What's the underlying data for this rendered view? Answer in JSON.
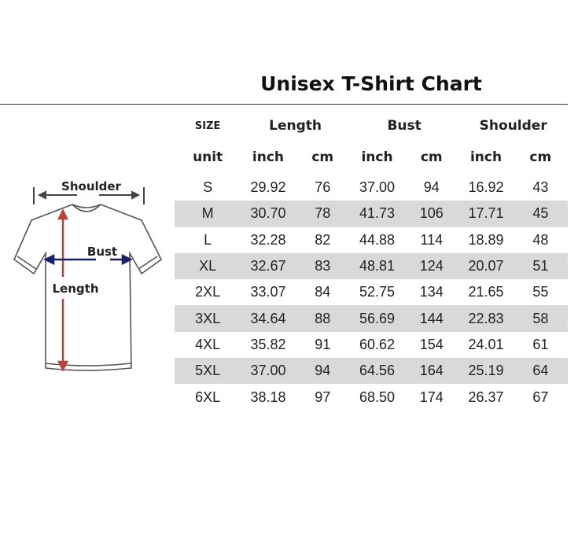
{
  "title": "Unisex T-Shirt Chart",
  "diagram": {
    "shoulder_label": "Shoulder",
    "bust_label": "Bust",
    "length_label": "Length"
  },
  "table": {
    "headers": {
      "size": "SIZE",
      "length": "Length",
      "bust": "Bust",
      "shoulder": "Shoulder"
    },
    "units": [
      "unit",
      "inch",
      "cm",
      "inch",
      "cm",
      "inch",
      "cm"
    ],
    "rows": [
      [
        "S",
        "29.92",
        "76",
        "37.00",
        "94",
        "16.92",
        "43"
      ],
      [
        "M",
        "30.70",
        "78",
        "41.73",
        "106",
        "17.71",
        "45"
      ],
      [
        "L",
        "32.28",
        "82",
        "44.88",
        "114",
        "18.89",
        "48"
      ],
      [
        "XL",
        "32.67",
        "83",
        "48.81",
        "124",
        "20.07",
        "51"
      ],
      [
        "2XL",
        "33.07",
        "84",
        "52.75",
        "134",
        "21.65",
        "55"
      ],
      [
        "3XL",
        "34.64",
        "88",
        "56.69",
        "144",
        "22.83",
        "58"
      ],
      [
        "4XL",
        "35.82",
        "91",
        "60.62",
        "154",
        "24.01",
        "61"
      ],
      [
        "5XL",
        "37.00",
        "94",
        "64.56",
        "164",
        "25.19",
        "64"
      ],
      [
        "6XL",
        "38.18",
        "97",
        "68.50",
        "174",
        "26.37",
        "67"
      ]
    ]
  },
  "colors": {
    "stripe": "#d9d9d9",
    "length_arrow": "#b5453b",
    "bust_arrow": "#1a1f6b"
  }
}
